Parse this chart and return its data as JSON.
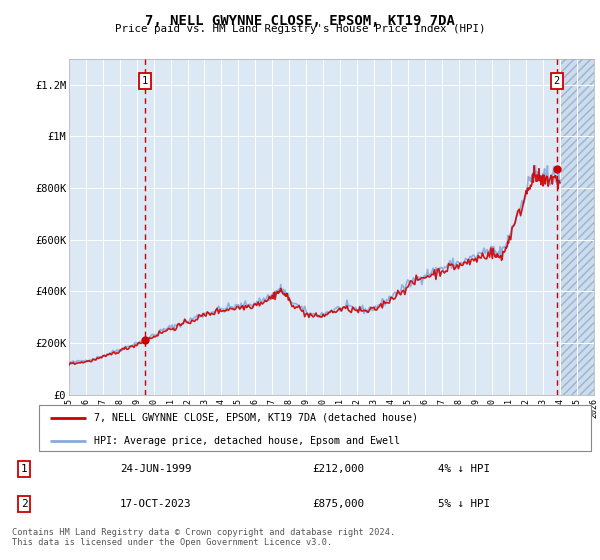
{
  "title": "7, NELL GWYNNE CLOSE, EPSOM, KT19 7DA",
  "subtitle": "Price paid vs. HM Land Registry's House Price Index (HPI)",
  "background_color": "#dde8f5",
  "grid_color": "#ffffff",
  "xmin": 1995,
  "xmax": 2026,
  "ymin": 0,
  "ymax": 1300000,
  "yticks": [
    0,
    200000,
    400000,
    600000,
    800000,
    1000000,
    1200000
  ],
  "ytick_labels": [
    "£0",
    "£200K",
    "£400K",
    "£600K",
    "£800K",
    "£1M",
    "£1.2M"
  ],
  "transaction1": {
    "date_x": 1999.48,
    "price": 212000,
    "label": "1"
  },
  "transaction2": {
    "date_x": 2023.79,
    "price": 875000,
    "label": "2"
  },
  "legend_line1": "7, NELL GWYNNE CLOSE, EPSOM, KT19 7DA (detached house)",
  "legend_line2": "HPI: Average price, detached house, Epsom and Ewell",
  "table_row1": [
    "1",
    "24-JUN-1999",
    "£212,000",
    "4% ↓ HPI"
  ],
  "table_row2": [
    "2",
    "17-OCT-2023",
    "£875,000",
    "5% ↓ HPI"
  ],
  "footer": "Contains HM Land Registry data © Crown copyright and database right 2024.\nThis data is licensed under the Open Government Licence v3.0.",
  "line_color_red": "#cc0000",
  "line_color_blue": "#88aadd",
  "hpi_base_years": [
    1995.0,
    1995.5,
    1996.0,
    1996.5,
    1997.0,
    1997.5,
    1998.0,
    1998.5,
    1999.0,
    1999.5,
    2000.0,
    2000.5,
    2001.0,
    2001.5,
    2002.0,
    2002.5,
    2003.0,
    2003.5,
    2004.0,
    2004.5,
    2005.0,
    2005.5,
    2006.0,
    2006.5,
    2007.0,
    2007.25,
    2007.5,
    2007.75,
    2008.0,
    2008.5,
    2009.0,
    2009.5,
    2010.0,
    2010.5,
    2011.0,
    2011.5,
    2012.0,
    2012.5,
    2013.0,
    2013.5,
    2014.0,
    2014.5,
    2015.0,
    2015.5,
    2016.0,
    2016.5,
    2017.0,
    2017.5,
    2018.0,
    2018.5,
    2019.0,
    2019.5,
    2020.0,
    2020.25,
    2020.5,
    2020.75,
    2021.0,
    2021.5,
    2022.0,
    2022.25,
    2022.5,
    2022.75,
    2023.0,
    2023.25,
    2023.5,
    2023.75,
    2024.0
  ],
  "hpi_base_vals": [
    125000,
    128000,
    133000,
    140000,
    150000,
    163000,
    175000,
    188000,
    200000,
    215000,
    232000,
    248000,
    260000,
    272000,
    285000,
    300000,
    313000,
    323000,
    332000,
    338000,
    342000,
    347000,
    355000,
    368000,
    385000,
    400000,
    410000,
    395000,
    372000,
    345000,
    318000,
    308000,
    312000,
    325000,
    335000,
    338000,
    332000,
    328000,
    335000,
    355000,
    378000,
    402000,
    425000,
    448000,
    465000,
    475000,
    490000,
    502000,
    510000,
    520000,
    535000,
    552000,
    562000,
    545000,
    548000,
    570000,
    620000,
    700000,
    795000,
    840000,
    860000,
    845000,
    830000,
    845000,
    855000,
    840000,
    830000
  ],
  "price_base_years": [
    1995.0,
    1995.5,
    1996.0,
    1996.5,
    1997.0,
    1997.5,
    1998.0,
    1998.5,
    1999.0,
    1999.5,
    2000.0,
    2000.5,
    2001.0,
    2001.5,
    2002.0,
    2002.5,
    2003.0,
    2003.5,
    2004.0,
    2004.5,
    2005.0,
    2005.5,
    2006.0,
    2006.5,
    2007.0,
    2007.25,
    2007.5,
    2007.75,
    2008.0,
    2008.5,
    2009.0,
    2009.5,
    2010.0,
    2010.5,
    2011.0,
    2011.5,
    2012.0,
    2012.5,
    2013.0,
    2013.5,
    2014.0,
    2014.5,
    2015.0,
    2015.5,
    2016.0,
    2016.5,
    2017.0,
    2017.5,
    2018.0,
    2018.5,
    2019.0,
    2019.5,
    2020.0,
    2020.25,
    2020.5,
    2020.75,
    2021.0,
    2021.5,
    2022.0,
    2022.25,
    2022.5,
    2022.75,
    2023.0,
    2023.25,
    2023.5,
    2023.75,
    2024.0
  ],
  "price_base_vals": [
    120000,
    123000,
    128000,
    135000,
    145000,
    158000,
    170000,
    183000,
    195000,
    210000,
    226000,
    242000,
    255000,
    267000,
    280000,
    295000,
    308000,
    318000,
    327000,
    333000,
    337000,
    342000,
    350000,
    362000,
    378000,
    393000,
    402000,
    388000,
    365000,
    338000,
    312000,
    302000,
    306000,
    320000,
    330000,
    332000,
    326000,
    322000,
    328000,
    348000,
    371000,
    395000,
    418000,
    440000,
    457000,
    467000,
    481000,
    492000,
    500000,
    510000,
    524000,
    540000,
    550000,
    533000,
    535000,
    558000,
    608000,
    688000,
    782000,
    826000,
    845000,
    832000,
    818000,
    832000,
    840000,
    828000,
    820000
  ]
}
